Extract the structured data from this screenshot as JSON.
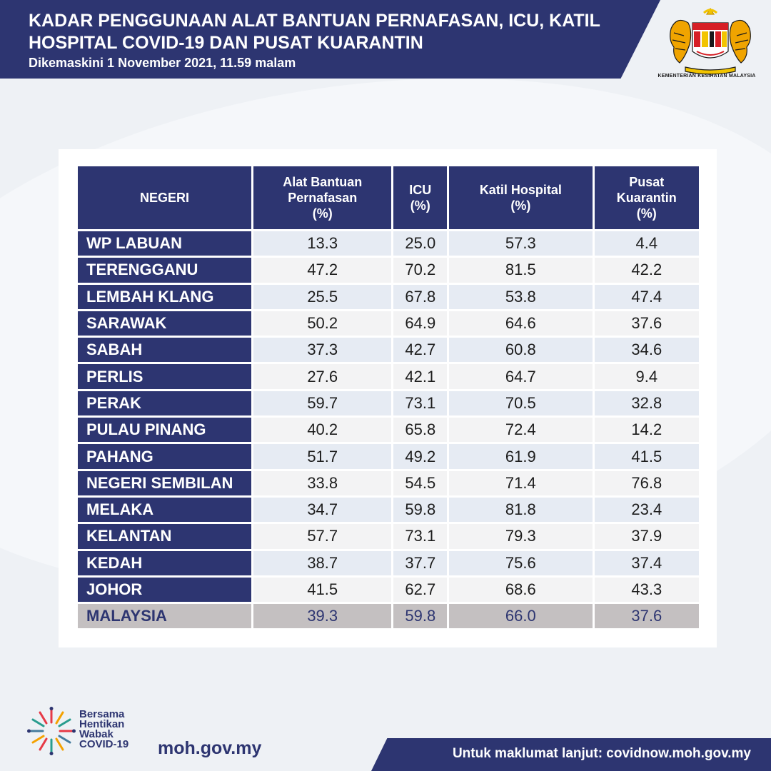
{
  "header": {
    "title": "KADAR PENGGUNAAN ALAT BANTUAN PERNAFASAN, ICU, KATIL HOSPITAL COVID-19 DAN PUSAT KUARANTIN",
    "updated": "Dikemaskini 1 November 2021, 11.59 malam",
    "ministry": "KEMENTERIAN KESIHATAN MALAYSIA"
  },
  "table": {
    "headers": {
      "negeri": "NEGERI",
      "ventilator": [
        "Alat Bantuan",
        "Pernafasan",
        "(%)"
      ],
      "icu": [
        "ICU",
        "(%)"
      ],
      "hospital": [
        "Katil Hospital",
        "(%)"
      ],
      "quarantine": [
        "Pusat",
        "Kuarantin",
        "(%)"
      ]
    },
    "rows": [
      {
        "negeri": "WP LABUAN",
        "ventilator": "13.3",
        "icu": "25.0",
        "hospital": "57.3",
        "quarantine": "4.4"
      },
      {
        "negeri": "TERENGGANU",
        "ventilator": "47.2",
        "icu": "70.2",
        "hospital": "81.5",
        "quarantine": "42.2"
      },
      {
        "negeri": "LEMBAH KLANG",
        "ventilator": "25.5",
        "icu": "67.8",
        "hospital": "53.8",
        "quarantine": "47.4"
      },
      {
        "negeri": "SARAWAK",
        "ventilator": "50.2",
        "icu": "64.9",
        "hospital": "64.6",
        "quarantine": "37.6"
      },
      {
        "negeri": "SABAH",
        "ventilator": "37.3",
        "icu": "42.7",
        "hospital": "60.8",
        "quarantine": "34.6"
      },
      {
        "negeri": "PERLIS",
        "ventilator": "27.6",
        "icu": "42.1",
        "hospital": "64.7",
        "quarantine": "9.4"
      },
      {
        "negeri": "PERAK",
        "ventilator": "59.7",
        "icu": "73.1",
        "hospital": "70.5",
        "quarantine": "32.8"
      },
      {
        "negeri": "PULAU PINANG",
        "ventilator": "40.2",
        "icu": "65.8",
        "hospital": "72.4",
        "quarantine": "14.2"
      },
      {
        "negeri": "PAHANG",
        "ventilator": "51.7",
        "icu": "49.2",
        "hospital": "61.9",
        "quarantine": "41.5"
      },
      {
        "negeri": "NEGERI SEMBILAN",
        "ventilator": "33.8",
        "icu": "54.5",
        "hospital": "71.4",
        "quarantine": "76.8"
      },
      {
        "negeri": "MELAKA",
        "ventilator": "34.7",
        "icu": "59.8",
        "hospital": "81.8",
        "quarantine": "23.4"
      },
      {
        "negeri": "KELANTAN",
        "ventilator": "57.7",
        "icu": "73.1",
        "hospital": "79.3",
        "quarantine": "37.9"
      },
      {
        "negeri": "KEDAH",
        "ventilator": "38.7",
        "icu": "37.7",
        "hospital": "75.6",
        "quarantine": "37.4"
      },
      {
        "negeri": "JOHOR",
        "ventilator": "41.5",
        "icu": "62.7",
        "hospital": "68.6",
        "quarantine": "43.3"
      }
    ],
    "total": {
      "negeri": "MALAYSIA",
      "ventilator": "39.3",
      "icu": "59.8",
      "hospital": "66.0",
      "quarantine": "37.6"
    }
  },
  "footer": {
    "campaign": [
      "Bersama",
      "Hentikan",
      "Wabak",
      "COVID-19"
    ],
    "site": "moh.gov.my",
    "more_info": "Untuk maklumat lanjut: covidnow.moh.gov.my"
  },
  "colors": {
    "navy": "#2d3571",
    "row_alt_a": "#e6ebf3",
    "row_alt_b": "#f3f3f4",
    "total_row": "#c4c0c1",
    "background": "#eef1f5"
  },
  "icons": [
    "coat-of-arms-icon",
    "campaign-sunburst-icon"
  ]
}
